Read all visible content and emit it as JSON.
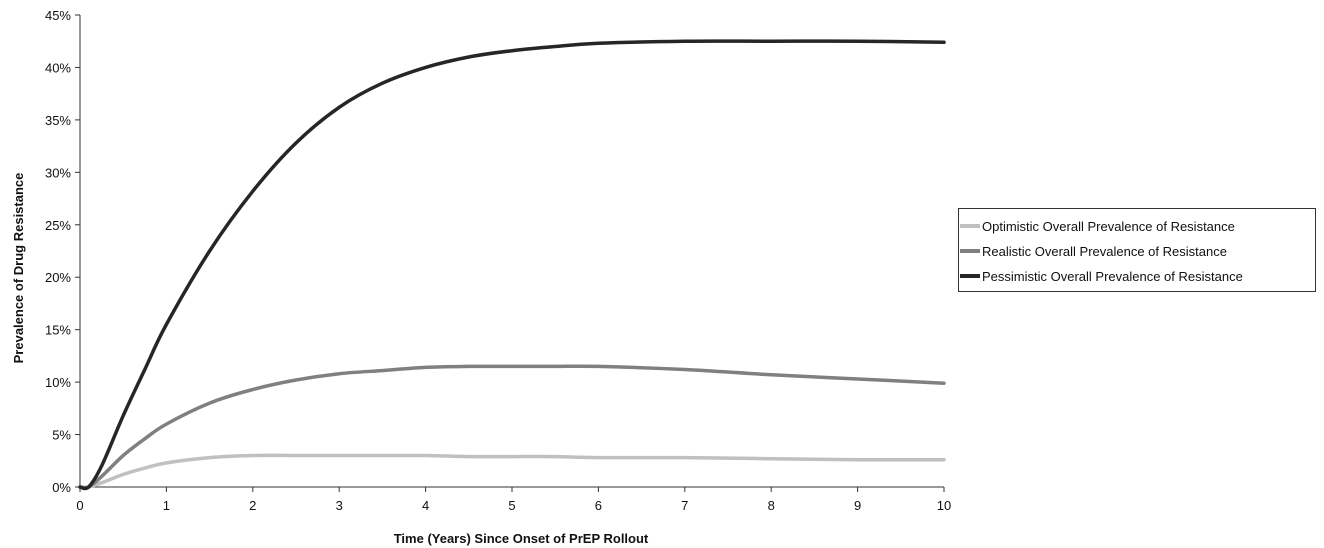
{
  "chart_data": {
    "type": "line",
    "xlabel": "Time (Years)  Since Onset  of PrEP Rollout",
    "ylabel": "Prevalence of Drug Resistance",
    "xlim": [
      0,
      10
    ],
    "ylim": [
      0,
      45
    ],
    "xticks": [
      "0",
      "1",
      "2",
      "3",
      "4",
      "5",
      "6",
      "7",
      "8",
      "9",
      "10"
    ],
    "yticks": [
      "0%",
      "5%",
      "10%",
      "15%",
      "20%",
      "25%",
      "30%",
      "35%",
      "40%",
      "45%"
    ],
    "grid": false,
    "legend_position": "right",
    "x": [
      0,
      0.1,
      0.25,
      0.5,
      0.75,
      1,
      1.5,
      2,
      2.5,
      3,
      3.5,
      4,
      4.5,
      5,
      5.5,
      6,
      7,
      8,
      9,
      10
    ],
    "series": [
      {
        "name": "Optimistic Overall Prevalence of Resistance",
        "color": "#c0c0c0",
        "values": [
          0,
          0,
          0.4,
          1.2,
          1.8,
          2.3,
          2.8,
          3.0,
          3.0,
          3.0,
          3.0,
          3.0,
          2.9,
          2.9,
          2.9,
          2.8,
          2.8,
          2.7,
          2.6,
          2.6
        ]
      },
      {
        "name": "Realistic Overall Prevalence of Resistance",
        "color": "#808080",
        "values": [
          0,
          0,
          1.0,
          3.0,
          4.6,
          6.0,
          8.0,
          9.3,
          10.2,
          10.8,
          11.1,
          11.4,
          11.5,
          11.5,
          11.5,
          11.5,
          11.2,
          10.7,
          10.3,
          9.9
        ]
      },
      {
        "name": "Pessimistic Overall Prevalence of Resistance",
        "color": "#262626",
        "values": [
          0,
          0,
          2.0,
          6.8,
          11.2,
          15.5,
          22.5,
          28.2,
          32.8,
          36.2,
          38.5,
          40.0,
          41.0,
          41.6,
          42.0,
          42.3,
          42.5,
          42.5,
          42.5,
          42.4
        ]
      }
    ]
  }
}
